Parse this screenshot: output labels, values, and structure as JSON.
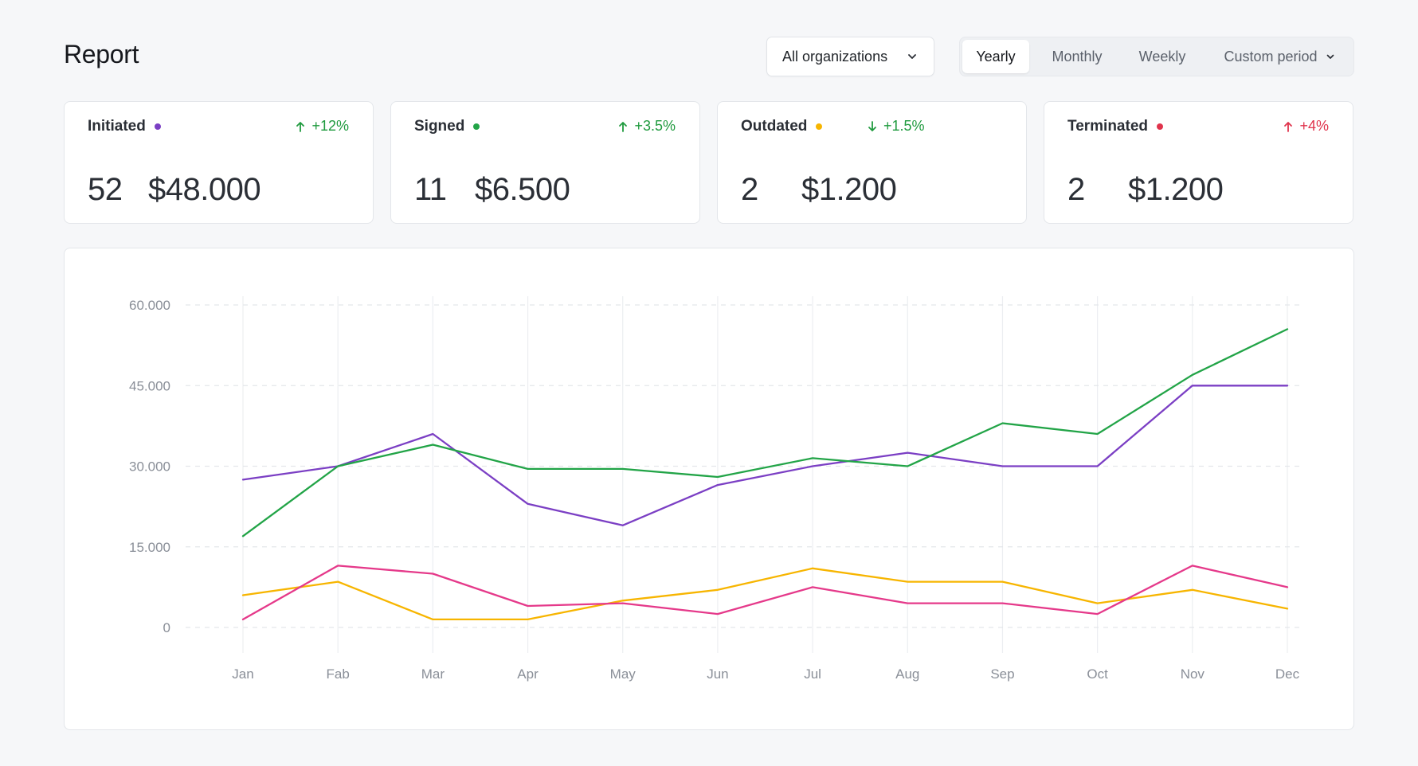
{
  "header": {
    "title": "Report",
    "org_select": {
      "value": "All organizations",
      "icon": "chevron-down-icon"
    },
    "periods": [
      {
        "label": "Yearly",
        "active": true
      },
      {
        "label": "Monthly",
        "active": false
      },
      {
        "label": "Weekly",
        "active": false
      },
      {
        "label": "Custom period",
        "active": false,
        "icon": "chevron-down-icon"
      }
    ]
  },
  "cards": [
    {
      "label": "Initiated",
      "dot_color": "#7b3fc4",
      "change": "+12%",
      "change_direction": "up",
      "change_color": "#1f9a3e",
      "count": "52",
      "amount": "$48.000"
    },
    {
      "label": "Signed",
      "dot_color": "#22a447",
      "change": "+3.5%",
      "change_direction": "up",
      "change_color": "#1f9a3e",
      "count": "11",
      "amount": "$6.500"
    },
    {
      "label": "Outdated",
      "dot_color": "#f7b500",
      "change": "+1.5%",
      "change_direction": "down",
      "change_color": "#1f9a3e",
      "count": "2",
      "amount": "$1.200"
    },
    {
      "label": "Terminated",
      "dot_color": "#e0334c",
      "change": "+4%",
      "change_direction": "up",
      "change_color": "#e0334c",
      "count": "2",
      "amount": "$1.200"
    }
  ],
  "chart_data": {
    "type": "line",
    "title": "",
    "xlabel": "",
    "ylabel": "",
    "categories": [
      "Jan",
      "Fab",
      "Mar",
      "Apr",
      "May",
      "Jun",
      "Jul",
      "Aug",
      "Sep",
      "Oct",
      "Nov",
      "Dec"
    ],
    "y_ticks": [
      "0",
      "15.000",
      "30.000",
      "45.000",
      "60.000"
    ],
    "ylim": [
      0,
      60000
    ],
    "grid": "horizontal dashed, vertical solid",
    "series": [
      {
        "name": "Initiated",
        "color": "#7b3fc4",
        "values": [
          27500,
          30000,
          36000,
          23000,
          19000,
          26500,
          30000,
          32500,
          30000,
          30000,
          45000,
          45000
        ]
      },
      {
        "name": "Signed",
        "color": "#22a447",
        "values": [
          17000,
          30000,
          34000,
          29500,
          29500,
          28000,
          31500,
          30000,
          38000,
          36000,
          47000,
          55500
        ]
      },
      {
        "name": "Outdated",
        "color": "#f7b500",
        "values": [
          6000,
          8500,
          1500,
          1500,
          5000,
          7000,
          11000,
          8500,
          8500,
          4500,
          7000,
          3500
        ]
      },
      {
        "name": "Terminated",
        "color": "#e5398a",
        "values": [
          1500,
          11500,
          10000,
          4000,
          4500,
          2500,
          7500,
          4500,
          4500,
          2500,
          11500,
          7500
        ]
      }
    ]
  }
}
